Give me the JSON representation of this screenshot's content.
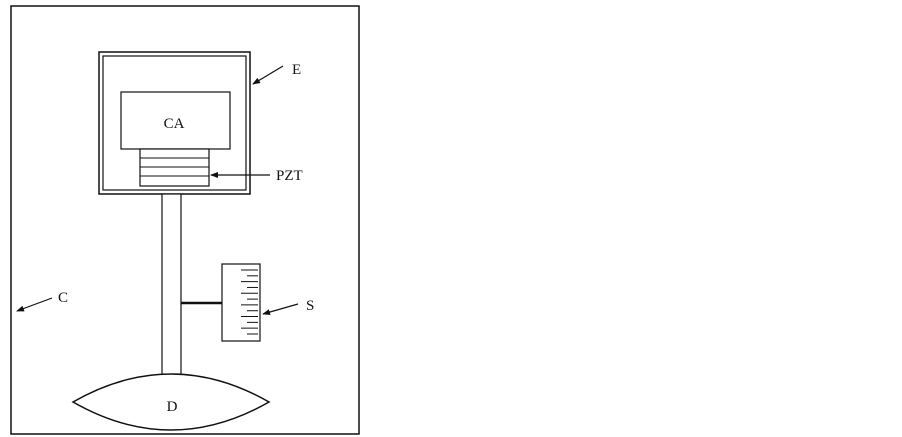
{
  "labels": {
    "ca": "CA",
    "pzt": "PZT",
    "e": "E",
    "c": "C",
    "s": "S",
    "d": "D"
  },
  "scale": {
    "tick_count": 12
  },
  "colors": {
    "line": "#111111",
    "background": "#ffffff"
  }
}
